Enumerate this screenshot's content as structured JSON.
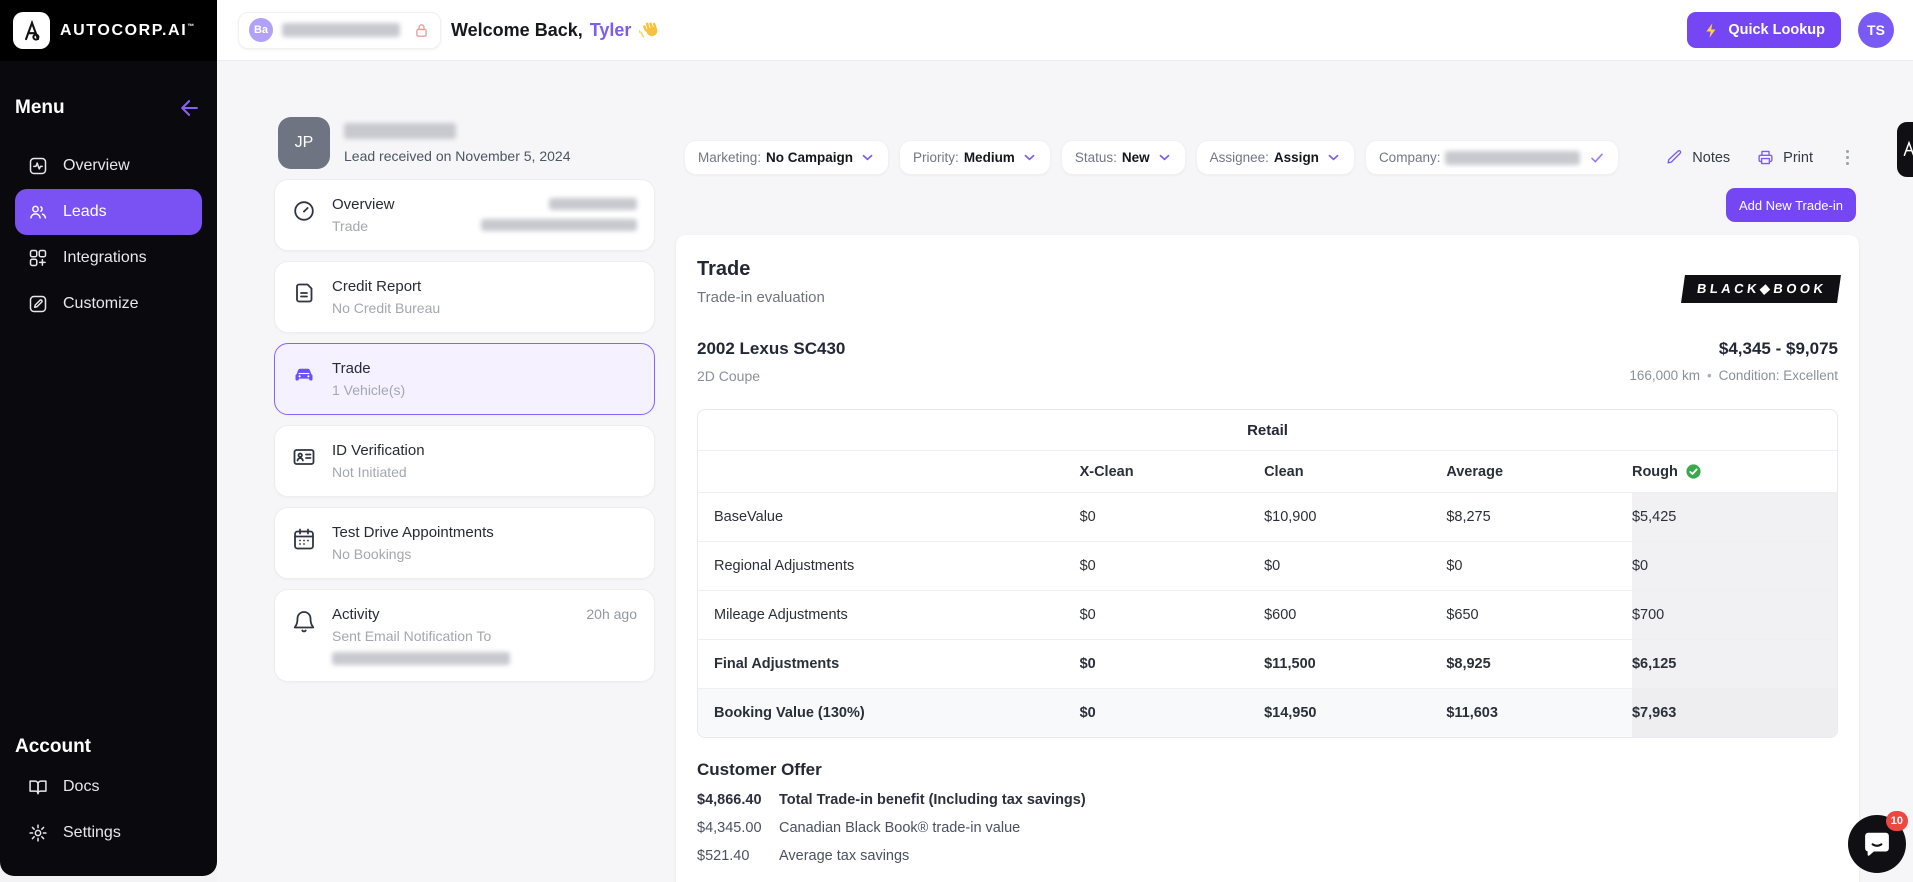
{
  "brand": {
    "name": "AUTOCORP.AI"
  },
  "topbar": {
    "org_avatar": "Ba",
    "welcome_prefix": "Welcome Back,",
    "welcome_name": "Tyler",
    "welcome_emoji": "👋",
    "quick_lookup": "Quick Lookup",
    "user_initials": "TS"
  },
  "sidebar": {
    "menu_heading": "Menu",
    "items": [
      {
        "label": "Overview",
        "icon": "overview-icon",
        "active": false
      },
      {
        "label": "Leads",
        "icon": "leads-icon",
        "active": true
      },
      {
        "label": "Integrations",
        "icon": "integrations-icon",
        "active": false
      },
      {
        "label": "Customize",
        "icon": "customize-icon",
        "active": false
      }
    ],
    "account_heading": "Account",
    "account_items": [
      {
        "label": "Docs",
        "icon": "docs-icon"
      },
      {
        "label": "Settings",
        "icon": "settings-icon"
      }
    ]
  },
  "lead": {
    "avatar_initials": "JP",
    "received_text": "Lead received on November 5, 2024",
    "dropdowns": [
      {
        "label": "Marketing:",
        "value": "No Campaign"
      },
      {
        "label": "Priority:",
        "value": "Medium"
      },
      {
        "label": "Status:",
        "value": "New"
      },
      {
        "label": "Assignee:",
        "value": "Assign"
      }
    ],
    "company_label": "Company:",
    "notes_label": "Notes",
    "print_label": "Print"
  },
  "nav_cards": [
    {
      "icon": "gauge-icon",
      "title": "Overview",
      "subtitle": "Trade",
      "redacted_right": true
    },
    {
      "icon": "credit-report-icon",
      "title": "Credit Report",
      "subtitle": "No Credit Bureau"
    },
    {
      "icon": "car-icon",
      "title": "Trade",
      "subtitle": "1 Vehicle(s)",
      "active": true
    },
    {
      "icon": "id-card-icon",
      "title": "ID Verification",
      "subtitle": "Not Initiated"
    },
    {
      "icon": "calendar-icon",
      "title": "Test Drive Appointments",
      "subtitle": "No Bookings"
    },
    {
      "icon": "bell-icon",
      "title": "Activity",
      "subtitle": "Sent Email Notification To",
      "redacted_line": true,
      "timestamp": "20h ago"
    }
  ],
  "trade_panel": {
    "title": "Trade",
    "subtitle": "Trade-in evaluation",
    "provider_badge": "BLACK◆BOOK",
    "add_button": "Add New Trade-in",
    "vehicle": {
      "name": "2002 Lexus SC430",
      "body": "2D Coupe",
      "price_range": "$4,345 - $9,075",
      "mileage": "166,000 km",
      "condition": "Condition: Excellent"
    },
    "table": {
      "group_header": "Retail",
      "columns": [
        "X-Clean",
        "Clean",
        "Average",
        "Rough"
      ],
      "verified_column": "Rough",
      "rows": [
        {
          "label": "BaseValue",
          "values": [
            "$0",
            "$10,900",
            "$8,275",
            "$5,425"
          ],
          "bold": false,
          "shaded": false
        },
        {
          "label": "Regional Adjustments",
          "values": [
            "$0",
            "$0",
            "$0",
            "$0"
          ],
          "bold": false,
          "shaded": false
        },
        {
          "label": "Mileage Adjustments",
          "values": [
            "$0",
            "$600",
            "$650",
            "$700"
          ],
          "bold": false,
          "shaded": false
        },
        {
          "label": "Final Adjustments",
          "values": [
            "$0",
            "$11,500",
            "$8,925",
            "$6,125"
          ],
          "bold": true,
          "shaded": false
        },
        {
          "label": "Booking Value (130%)",
          "values": [
            "$0",
            "$14,950",
            "$11,603",
            "$7,963"
          ],
          "bold": true,
          "shaded": true
        }
      ]
    },
    "customer_offer": {
      "title": "Customer Offer",
      "lines": [
        {
          "amount": "$4,866.40",
          "label": "Total Trade-in benefit (Including tax savings)",
          "bold": true
        },
        {
          "amount": "$4,345.00",
          "label": "Canadian Black Book® trade-in value",
          "bold": false
        },
        {
          "amount": "$521.40",
          "label": "Average tax savings",
          "bold": false
        }
      ]
    }
  },
  "chat": {
    "unread_count": "10"
  },
  "colors": {
    "accent": "#7446f4",
    "accent_light": "#7b5cf6",
    "green": "#3ba84e",
    "badge_red": "#ec4740"
  }
}
